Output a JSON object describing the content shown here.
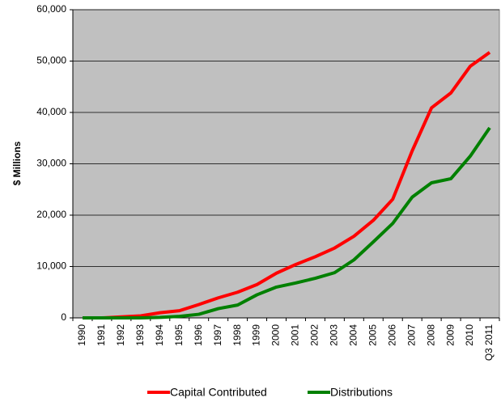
{
  "chart_data": {
    "type": "line",
    "ylabel": "$ Millions",
    "categories": [
      "1990",
      "1991",
      "1992",
      "1993",
      "1994",
      "1995",
      "1996",
      "1997",
      "1998",
      "1999",
      "2000",
      "2001",
      "2002",
      "2003",
      "2004",
      "2005",
      "2006",
      "2007",
      "2008",
      "2009",
      "2010",
      "Q3 2011"
    ],
    "series": [
      {
        "name": "Capital Contributed",
        "color": "#ff0000",
        "values": [
          0,
          0,
          200,
          400,
          1000,
          1400,
          2600,
          3900,
          5000,
          6500,
          8700,
          10400,
          11900,
          13600,
          15900,
          19000,
          23100,
          32500,
          40900,
          43800,
          49000,
          51700
        ]
      },
      {
        "name": "Distributions",
        "color": "#008000",
        "values": [
          0,
          0,
          0,
          0,
          100,
          300,
          700,
          1800,
          2500,
          4500,
          6000,
          6800,
          7700,
          8800,
          11300,
          14800,
          18400,
          23500,
          26300,
          27100,
          31500,
          37000
        ]
      }
    ],
    "ylim": [
      0,
      60000
    ],
    "yticks": [
      0,
      {
        "value": 10000,
        "label": "10,000"
      },
      {
        "value": 20000,
        "label": "20,000"
      },
      {
        "value": 30000,
        "label": "30,000"
      },
      {
        "value": 40000,
        "label": "40,000"
      },
      {
        "value": 50000,
        "label": "50,000"
      },
      {
        "value": 60000,
        "label": "60,000"
      }
    ],
    "grid": true,
    "legend": "bottom"
  }
}
